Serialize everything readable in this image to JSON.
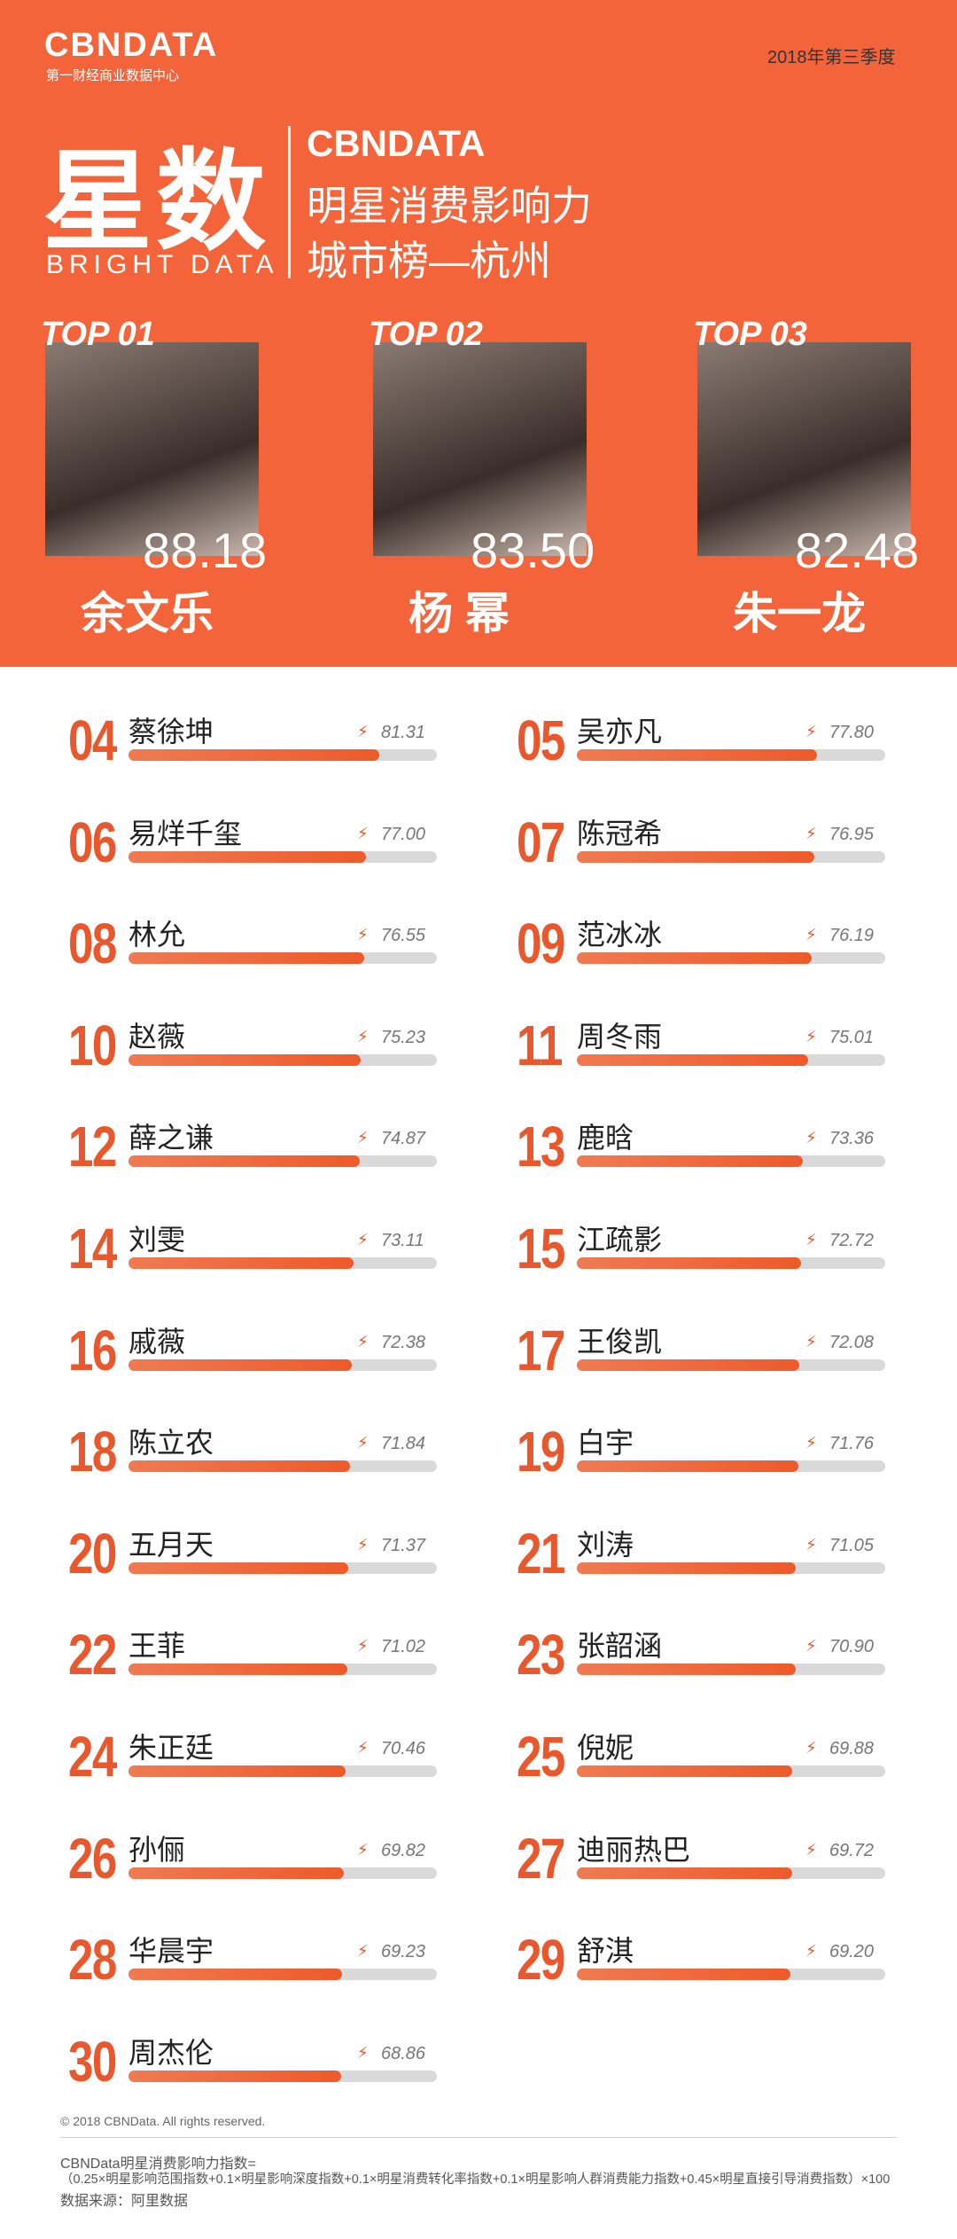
{
  "header": {
    "logo": "CBNDATA",
    "logo_sub": "第一财经商业数据中心",
    "period": "2018年第三季度",
    "brand": "星数",
    "brand_en": "BRIGHT DATA",
    "title_logo": "CBNDATA",
    "title_line1": "明星消费影响力",
    "title_line2": "城市榜—杭州"
  },
  "top": {
    "ranks": [
      "TOP 01",
      "TOP 02",
      "TOP 03"
    ],
    "names": [
      "余文乐",
      "杨 幂",
      "朱一龙"
    ],
    "values": [
      88.18,
      83.5,
      82.48
    ],
    "value_labels": [
      "88.18",
      "83.50",
      "82.48"
    ]
  },
  "ranking": {
    "ranks": [
      "04",
      "05",
      "06",
      "07",
      "08",
      "09",
      "10",
      "11",
      "12",
      "13",
      "14",
      "15",
      "16",
      "17",
      "18",
      "19",
      "20",
      "21",
      "22",
      "23",
      "24",
      "25",
      "26",
      "27",
      "28",
      "29",
      "30"
    ],
    "names": [
      "蔡徐坤",
      "吴亦凡",
      "易烊千玺",
      "陈冠希",
      "林允",
      "范冰冰",
      "赵薇",
      "周冬雨",
      "薛之谦",
      "鹿晗",
      "刘雯",
      "江疏影",
      "戚薇",
      "王俊凯",
      "陈立农",
      "白宇",
      "五月天",
      "刘涛",
      "王菲",
      "张韶涵",
      "朱正廷",
      "倪妮",
      "孙俪",
      "迪丽热巴",
      "华晨宇",
      "舒淇",
      "周杰伦"
    ],
    "values": [
      81.31,
      77.8,
      77,
      76.95,
      76.55,
      76.19,
      75.23,
      75.01,
      74.87,
      73.36,
      73.11,
      72.72,
      72.38,
      72.08,
      71.84,
      71.76,
      71.37,
      71.05,
      71.02,
      70.9,
      70.46,
      69.88,
      69.82,
      69.72,
      69.23,
      69.2,
      68.86
    ],
    "value_labels": [
      "81.31",
      "77.80",
      "77.00",
      "76.95",
      "76.55",
      "76.19",
      "75.23",
      "75.01",
      "74.87",
      "73.36",
      "73.11",
      "72.72",
      "72.38",
      "72.08",
      "71.84",
      "71.76",
      "71.37",
      "71.05",
      "71.02",
      "70.90",
      "70.46",
      "69.88",
      "69.82",
      "69.72",
      "69.23",
      "69.20",
      "68.86"
    ]
  },
  "footer": {
    "copyright": "© 2018 CBNData. All rights reserved.",
    "formula_title": "CBNData明星消费影响力指数=",
    "formula": "（0.25×明星影响范围指数+0.1×明星影响深度指数+0.1×明星消费转化率指数+0.1×明星影响人群消费能力指数+0.45×明星直接引导消费指数）×100",
    "source": "数据来源：阿里数据"
  }
}
